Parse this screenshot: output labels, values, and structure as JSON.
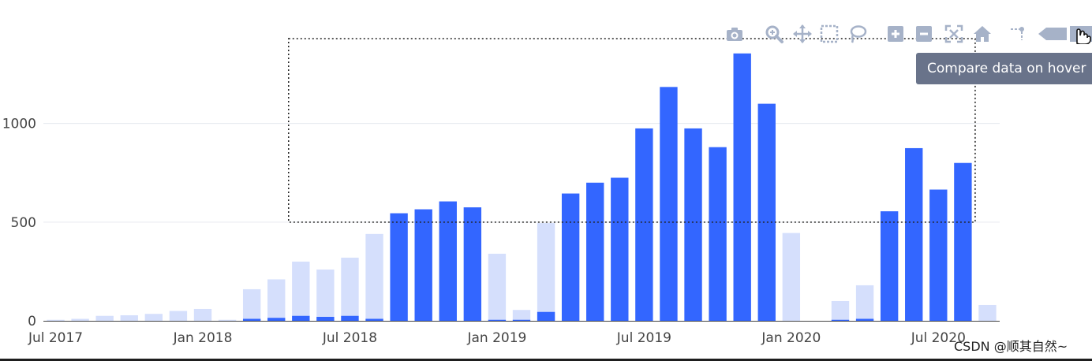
{
  "chart_data": {
    "type": "bar",
    "barmode": "overlay",
    "title": "",
    "xlabel": "",
    "ylabel": "",
    "x": [
      "2017-07",
      "2017-08",
      "2017-09",
      "2017-10",
      "2017-11",
      "2017-12",
      "2018-01",
      "2018-02",
      "2018-03",
      "2018-04",
      "2018-05",
      "2018-06",
      "2018-07",
      "2018-08",
      "2018-09",
      "2018-10",
      "2018-11",
      "2018-12",
      "2019-01",
      "2019-02",
      "2019-03",
      "2019-04",
      "2019-05",
      "2019-06",
      "2019-07",
      "2019-08",
      "2019-09",
      "2019-10",
      "2019-11",
      "2019-12",
      "2020-01",
      "2020-02",
      "2020-03",
      "2020-04",
      "2020-05",
      "2020-06",
      "2020-07",
      "2020-08",
      "2020-09"
    ],
    "series": [
      {
        "values": [
          5,
          10,
          25,
          28,
          35,
          50,
          60,
          5,
          160,
          210,
          300,
          260,
          320,
          440,
          0,
          0,
          0,
          0,
          340,
          55,
          495,
          0,
          0,
          0,
          0,
          0,
          0,
          0,
          0,
          0,
          445,
          0,
          100,
          180,
          0,
          0,
          0,
          0,
          80
        ],
        "color": "#d5dffc"
      },
      {
        "values": [
          0,
          0,
          0,
          0,
          0,
          0,
          0,
          0,
          10,
          15,
          25,
          20,
          25,
          10,
          545,
          565,
          605,
          575,
          5,
          5,
          45,
          645,
          700,
          725,
          975,
          1185,
          975,
          880,
          1355,
          1100,
          0,
          0,
          5,
          10,
          555,
          875,
          665,
          800,
          0
        ],
        "color": "#3366ff"
      }
    ],
    "ylim": [
      0,
      1450
    ],
    "yticks": [
      "0",
      "500",
      "1000"
    ],
    "xticks": [
      "Jul 2017",
      "Jan 2018",
      "Jul 2018",
      "Jan 2019",
      "Jul 2019",
      "Jan 2020",
      "Jul 2020"
    ],
    "grid": true,
    "selection_box": {
      "x_from": "2018-05",
      "x_to": "2020-09",
      "y_from": 500,
      "y_to": 1430
    }
  },
  "modebar": {
    "buttons": [
      {
        "name": "camera-icon"
      },
      {
        "name": "zoom-icon"
      },
      {
        "name": "pan-icon"
      },
      {
        "name": "box-select-icon"
      },
      {
        "name": "lasso-select-icon"
      },
      {
        "name": "zoom-in-icon"
      },
      {
        "name": "zoom-out-icon"
      },
      {
        "name": "autoscale-icon"
      },
      {
        "name": "home-icon"
      },
      {
        "name": "spike-lines-icon"
      },
      {
        "name": "hover-closest-icon"
      },
      {
        "name": "hover-compare-icon"
      }
    ],
    "tooltip": "Compare data on hover"
  },
  "watermark": "CSDN @顺其自然~"
}
